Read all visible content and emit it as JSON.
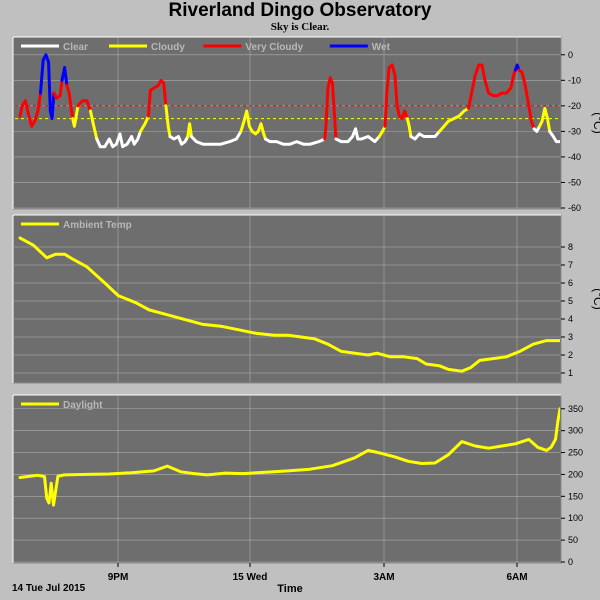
{
  "title": "Riverland Dingo Observatory",
  "subtitle": "Sky is Clear.",
  "footer": {
    "date": "14 Tue Jul 2015",
    "xlabel": "Time"
  },
  "colors": {
    "background": "#c0c0c0",
    "plot_bg": "#6e6e6e",
    "grid": "#bdbdbd",
    "clear": "#ffffff",
    "cloudy": "#ffff00",
    "very_cloudy": "#ff0000",
    "wet": "#0000ff",
    "threshold_red": "#ff0000",
    "threshold_yellow": "#ffff00"
  },
  "chart_data": [
    {
      "type": "line",
      "name": "sky",
      "unit": "(°C)",
      "ylim": [
        -60,
        5
      ],
      "yticks": [
        0,
        -10,
        -20,
        -30,
        -40,
        -50,
        -60
      ],
      "xlim": [
        0,
        12.1
      ],
      "thresholds": [
        {
          "value": -20,
          "color": "#ff0000"
        },
        {
          "value": -25,
          "color": "#ffff00"
        }
      ],
      "legend": [
        {
          "label": "Clear",
          "color": "#ffffff"
        },
        {
          "label": "Cloudy",
          "color": "#ffff00"
        },
        {
          "label": "Very Cloudy",
          "color": "#ff0000"
        },
        {
          "label": "Wet",
          "color": "#0000ff"
        }
      ],
      "segments": [
        {
          "color": "#ff0000",
          "points": [
            [
              0,
              -24
            ],
            [
              0.05,
              -20
            ],
            [
              0.12,
              -18
            ],
            [
              0.2,
              -24
            ],
            [
              0.26,
              -28
            ],
            [
              0.33,
              -26
            ],
            [
              0.4,
              -22
            ],
            [
              0.46,
              -15
            ]
          ]
        },
        {
          "color": "#0000ff",
          "points": [
            [
              0.46,
              -15
            ],
            [
              0.52,
              -2
            ],
            [
              0.58,
              0
            ],
            [
              0.64,
              -3
            ],
            [
              0.68,
              -22
            ],
            [
              0.72,
              -25
            ],
            [
              0.76,
              -15
            ]
          ]
        },
        {
          "color": "#ff0000",
          "points": [
            [
              0.76,
              -15
            ],
            [
              0.82,
              -17
            ],
            [
              0.9,
              -16
            ],
            [
              0.94,
              -10
            ]
          ]
        },
        {
          "color": "#0000ff",
          "points": [
            [
              0.94,
              -10
            ],
            [
              1.0,
              -5
            ],
            [
              1.05,
              -12
            ]
          ]
        },
        {
          "color": "#ff0000",
          "points": [
            [
              1.05,
              -12
            ],
            [
              1.1,
              -15
            ],
            [
              1.18,
              -25
            ]
          ]
        },
        {
          "color": "#ffff00",
          "points": [
            [
              1.18,
              -25
            ],
            [
              1.22,
              -28
            ],
            [
              1.26,
              -24
            ],
            [
              1.3,
              -20
            ]
          ]
        },
        {
          "color": "#ff0000",
          "points": [
            [
              1.3,
              -20
            ],
            [
              1.4,
              -18
            ],
            [
              1.5,
              -18
            ],
            [
              1.58,
              -22
            ]
          ]
        },
        {
          "color": "#ffff00",
          "points": [
            [
              1.58,
              -22
            ],
            [
              1.64,
              -27
            ],
            [
              1.72,
              -33
            ]
          ]
        },
        {
          "color": "#ffffff",
          "points": [
            [
              1.72,
              -33
            ],
            [
              1.8,
              -36
            ],
            [
              1.9,
              -36
            ],
            [
              2.0,
              -33
            ],
            [
              2.08,
              -36
            ],
            [
              2.16,
              -35
            ],
            [
              2.24,
              -31
            ],
            [
              2.3,
              -36
            ],
            [
              2.4,
              -35
            ],
            [
              2.5,
              -32
            ],
            [
              2.56,
              -35
            ],
            [
              2.64,
              -33
            ],
            [
              2.7,
              -30
            ]
          ]
        },
        {
          "color": "#ffff00",
          "points": [
            [
              2.7,
              -30
            ],
            [
              2.8,
              -27
            ],
            [
              2.88,
              -24
            ]
          ]
        },
        {
          "color": "#ff0000",
          "points": [
            [
              2.88,
              -24
            ],
            [
              2.92,
              -14
            ],
            [
              3.0,
              -13
            ],
            [
              3.1,
              -12
            ],
            [
              3.16,
              -10
            ],
            [
              3.22,
              -11
            ],
            [
              3.27,
              -20
            ]
          ]
        },
        {
          "color": "#ffff00",
          "points": [
            [
              3.27,
              -20
            ],
            [
              3.32,
              -28
            ],
            [
              3.36,
              -32
            ]
          ]
        },
        {
          "color": "#ffffff",
          "points": [
            [
              3.36,
              -32
            ],
            [
              3.45,
              -33
            ],
            [
              3.55,
              -32
            ],
            [
              3.62,
              -35
            ],
            [
              3.7,
              -34
            ],
            [
              3.76,
              -32
            ]
          ]
        },
        {
          "color": "#ffff00",
          "points": [
            [
              3.76,
              -32
            ],
            [
              3.8,
              -27
            ],
            [
              3.84,
              -32
            ]
          ]
        },
        {
          "color": "#ffffff",
          "points": [
            [
              3.84,
              -32
            ],
            [
              3.95,
              -34
            ],
            [
              4.1,
              -35
            ],
            [
              4.3,
              -35
            ],
            [
              4.5,
              -35
            ],
            [
              4.7,
              -34
            ],
            [
              4.85,
              -33
            ],
            [
              4.95,
              -30
            ]
          ]
        },
        {
          "color": "#ffff00",
          "points": [
            [
              4.95,
              -30
            ],
            [
              5.02,
              -26
            ],
            [
              5.08,
              -22
            ],
            [
              5.14,
              -28
            ],
            [
              5.2,
              -30
            ],
            [
              5.28,
              -31
            ],
            [
              5.34,
              -30
            ],
            [
              5.4,
              -27
            ],
            [
              5.46,
              -31
            ],
            [
              5.5,
              -33
            ]
          ]
        },
        {
          "color": "#ffffff",
          "points": [
            [
              5.5,
              -33
            ],
            [
              5.6,
              -34
            ],
            [
              5.75,
              -34
            ],
            [
              5.9,
              -35
            ],
            [
              6.05,
              -35
            ],
            [
              6.2,
              -34
            ],
            [
              6.35,
              -35
            ],
            [
              6.5,
              -35
            ],
            [
              6.7,
              -34
            ],
            [
              6.83,
              -33
            ]
          ]
        },
        {
          "color": "#ff0000",
          "points": [
            [
              6.83,
              -33
            ],
            [
              6.86,
              -27
            ],
            [
              6.9,
              -13
            ],
            [
              6.95,
              -9
            ],
            [
              7.0,
              -11
            ],
            [
              7.04,
              -22
            ],
            [
              7.08,
              -33
            ]
          ]
        },
        {
          "color": "#ffffff",
          "points": [
            [
              7.08,
              -33
            ],
            [
              7.2,
              -34
            ],
            [
              7.35,
              -34
            ],
            [
              7.45,
              -32
            ],
            [
              7.52,
              -29
            ],
            [
              7.57,
              -33
            ],
            [
              7.65,
              -33
            ],
            [
              7.8,
              -32
            ],
            [
              7.95,
              -34
            ],
            [
              8.05,
              -32
            ]
          ]
        },
        {
          "color": "#ffff00",
          "points": [
            [
              8.05,
              -32
            ],
            [
              8.12,
              -30
            ],
            [
              8.18,
              -28
            ]
          ]
        },
        {
          "color": "#ff0000",
          "points": [
            [
              8.18,
              -28
            ],
            [
              8.22,
              -15
            ],
            [
              8.27,
              -5
            ],
            [
              8.34,
              -4
            ],
            [
              8.4,
              -8
            ],
            [
              8.45,
              -20
            ],
            [
              8.5,
              -24
            ],
            [
              8.56,
              -25
            ],
            [
              8.62,
              -22
            ],
            [
              8.68,
              -25
            ]
          ]
        },
        {
          "color": "#ffff00",
          "points": [
            [
              8.68,
              -25
            ],
            [
              8.72,
              -28
            ],
            [
              8.76,
              -32
            ]
          ]
        },
        {
          "color": "#ffffff",
          "points": [
            [
              8.76,
              -32
            ],
            [
              8.85,
              -33
            ],
            [
              8.95,
              -31
            ],
            [
              9.05,
              -32
            ],
            [
              9.15,
              -32
            ],
            [
              9.3,
              -32
            ],
            [
              9.4,
              -30
            ]
          ]
        },
        {
          "color": "#ffff00",
          "points": [
            [
              9.4,
              -30
            ],
            [
              9.5,
              -28
            ],
            [
              9.6,
              -26
            ],
            [
              9.72,
              -25
            ],
            [
              9.84,
              -24
            ],
            [
              9.95,
              -22
            ],
            [
              10.05,
              -21
            ]
          ]
        },
        {
          "color": "#ff0000",
          "points": [
            [
              10.05,
              -21
            ],
            [
              10.12,
              -15
            ],
            [
              10.2,
              -8
            ],
            [
              10.28,
              -4
            ],
            [
              10.35,
              -4
            ],
            [
              10.42,
              -10
            ],
            [
              10.5,
              -15
            ],
            [
              10.6,
              -16
            ],
            [
              10.7,
              -16
            ],
            [
              10.8,
              -15
            ],
            [
              10.9,
              -15
            ],
            [
              11.0,
              -13
            ],
            [
              11.06,
              -8
            ],
            [
              11.1,
              -6
            ]
          ]
        },
        {
          "color": "#0000ff",
          "points": [
            [
              11.1,
              -6
            ],
            [
              11.14,
              -4
            ],
            [
              11.18,
              -6
            ]
          ]
        },
        {
          "color": "#ff0000",
          "points": [
            [
              11.18,
              -6
            ],
            [
              11.25,
              -7
            ],
            [
              11.32,
              -12
            ],
            [
              11.4,
              -20
            ],
            [
              11.46,
              -26
            ],
            [
              11.52,
              -29
            ]
          ]
        },
        {
          "color": "#ffffff",
          "points": [
            [
              11.52,
              -29
            ],
            [
              11.58,
              -30
            ],
            [
              11.64,
              -28
            ]
          ]
        },
        {
          "color": "#ffff00",
          "points": [
            [
              11.64,
              -28
            ],
            [
              11.7,
              -26
            ],
            [
              11.76,
              -21
            ],
            [
              11.82,
              -25
            ],
            [
              11.87,
              -30
            ]
          ]
        },
        {
          "color": "#ffffff",
          "points": [
            [
              11.87,
              -30
            ],
            [
              11.95,
              -32
            ],
            [
              12.02,
              -34
            ],
            [
              12.1,
              -34
            ]
          ]
        }
      ]
    },
    {
      "type": "line",
      "name": "ambient",
      "legend": [
        {
          "label": "Ambient Temp",
          "color": "#ffff00"
        }
      ],
      "unit": "(°C)",
      "ylim": [
        0.5,
        9.5
      ],
      "yticks": [
        8,
        7,
        6,
        5,
        4,
        3,
        2,
        1
      ],
      "xlim": [
        0,
        12.1
      ],
      "color": "#ffff00",
      "x": [
        0,
        0.3,
        0.6,
        0.8,
        1.0,
        1.2,
        1.5,
        1.9,
        2.2,
        2.6,
        2.9,
        3.2,
        3.5,
        3.8,
        4.1,
        4.5,
        4.9,
        5.3,
        5.7,
        6.0,
        6.3,
        6.6,
        6.9,
        7.2,
        7.5,
        7.8,
        8.0,
        8.3,
        8.6,
        8.9,
        9.1,
        9.4,
        9.6,
        9.9,
        10.1,
        10.3,
        10.6,
        10.9,
        11.2,
        11.5,
        11.8,
        12.1
      ],
      "y": [
        8.5,
        8.1,
        7.4,
        7.6,
        7.6,
        7.3,
        6.9,
        6.0,
        5.3,
        4.9,
        4.5,
        4.3,
        4.1,
        3.9,
        3.7,
        3.6,
        3.4,
        3.2,
        3.1,
        3.1,
        3.0,
        2.9,
        2.6,
        2.2,
        2.1,
        2.0,
        2.1,
        1.9,
        1.9,
        1.8,
        1.5,
        1.4,
        1.2,
        1.1,
        1.3,
        1.7,
        1.8,
        1.9,
        2.2,
        2.6,
        2.8,
        2.8
      ]
    },
    {
      "type": "line",
      "name": "daylight",
      "legend": [
        {
          "label": "Daylight",
          "color": "#ffff00"
        }
      ],
      "unit": "",
      "ylim": [
        0,
        370
      ],
      "yticks": [
        350,
        300,
        250,
        200,
        150,
        100,
        50,
        0
      ],
      "xlim": [
        0,
        12.1
      ],
      "color": "#ffff00",
      "x": [
        0,
        0.4,
        0.55,
        0.6,
        0.65,
        0.7,
        0.75,
        0.85,
        1.0,
        1.5,
        2.0,
        2.5,
        3.0,
        3.3,
        3.6,
        3.9,
        4.2,
        4.6,
        5.0,
        5.5,
        6.0,
        6.5,
        7.0,
        7.5,
        7.8,
        8.1,
        8.4,
        8.7,
        9.0,
        9.3,
        9.6,
        9.9,
        10.2,
        10.5,
        10.8,
        11.1,
        11.4,
        11.6,
        11.8,
        11.9,
        12.0,
        12.05,
        12.1
      ],
      "y": [
        193,
        198,
        195,
        145,
        135,
        180,
        130,
        196,
        199,
        200,
        201,
        204,
        208,
        219,
        206,
        202,
        199,
        203,
        202,
        205,
        208,
        212,
        220,
        238,
        255,
        248,
        240,
        230,
        225,
        226,
        245,
        275,
        265,
        260,
        265,
        270,
        280,
        262,
        255,
        262,
        280,
        320,
        350
      ]
    }
  ]
}
